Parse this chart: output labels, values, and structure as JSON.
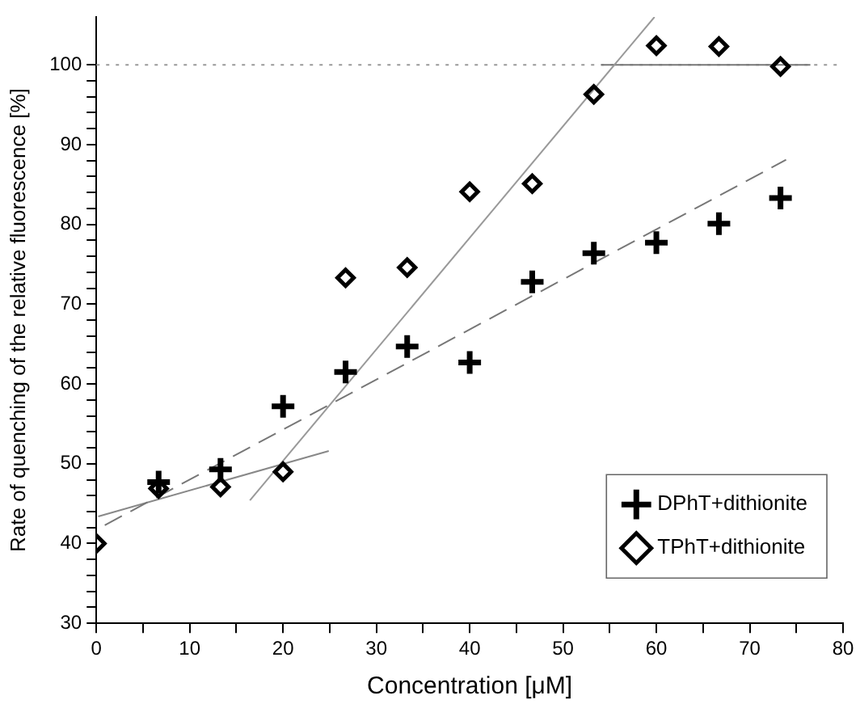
{
  "chart_data": {
    "type": "scatter",
    "xlabel": "Concentration [μM]",
    "ylabel": "Rate of quenching of the relative fluorescence [%]",
    "xlim": [
      0,
      80
    ],
    "xticks": [
      0,
      {
        "value": 5,
        "label": null
      },
      10,
      {
        "value": 15,
        "label": null
      },
      20,
      {
        "value": 25,
        "label": null
      },
      30,
      {
        "value": 35,
        "label": null
      },
      40,
      {
        "value": 45,
        "label": null
      },
      50,
      {
        "value": 55,
        "label": null
      },
      60,
      {
        "value": 65,
        "label": null
      },
      70,
      {
        "value": 75,
        "label": null
      },
      80
    ],
    "ylim": [
      30,
      106
    ],
    "yticks": [
      30,
      {
        "value": 32,
        "label": null
      },
      {
        "value": 34,
        "label": null
      },
      {
        "value": 36,
        "label": null
      },
      {
        "value": 38,
        "label": null
      },
      40,
      {
        "value": 42,
        "label": null
      },
      {
        "value": 44,
        "label": null
      },
      {
        "value": 46,
        "label": null
      },
      {
        "value": 48,
        "label": null
      },
      50,
      {
        "value": 52,
        "label": null
      },
      {
        "value": 54,
        "label": null
      },
      {
        "value": 56,
        "label": null
      },
      {
        "value": 58,
        "label": null
      },
      60,
      {
        "value": 62,
        "label": null
      },
      {
        "value": 64,
        "label": null
      },
      {
        "value": 66,
        "label": null
      },
      {
        "value": 68,
        "label": null
      },
      70,
      {
        "value": 72,
        "label": null
      },
      {
        "value": 74,
        "label": null
      },
      {
        "value": 76,
        "label": null
      },
      {
        "value": 78,
        "label": null
      },
      80,
      {
        "value": 82,
        "label": null
      },
      {
        "value": 84,
        "label": null
      },
      {
        "value": 86,
        "label": null
      },
      {
        "value": 88,
        "label": null
      },
      90,
      {
        "value": 92,
        "label": null
      },
      {
        "value": 94,
        "label": null
      },
      {
        "value": 96,
        "label": null
      },
      {
        "value": 98,
        "label": null
      },
      100
    ],
    "legend": "bottom right",
    "ref_lines": [
      {
        "axis": "y",
        "value": 100,
        "color": "#999999",
        "line_style": "dotted"
      }
    ],
    "series": [
      {
        "name": "DPhT+dithionite",
        "color": "#000000",
        "marker": "cross",
        "x": [
          6.67,
          13.3,
          20,
          26.7,
          33.3,
          40,
          46.7,
          53.3,
          60,
          66.7,
          73.3
        ],
        "values": [
          47.7,
          49.3,
          57.2,
          61.5,
          64.7,
          62.7,
          72.8,
          76.4,
          77.7,
          80.1,
          83.3
        ]
      },
      {
        "name": "TPhT+dithionite",
        "color": "#000000",
        "marker": "diamond",
        "x": [
          0,
          6.67,
          13.3,
          20,
          26.7,
          33.3,
          40,
          46.7,
          53.3,
          60,
          66.7,
          73.3
        ],
        "values": [
          40,
          46.9,
          47.1,
          49,
          73.3,
          74.6,
          84.1,
          85.1,
          96.3,
          102.4,
          102.3,
          99.8
        ]
      },
      {
        "type": "line",
        "color": "#777777",
        "marker": "none",
        "line_style": "dashed",
        "x": [
          0.9,
          73.9
        ],
        "values": [
          42.3,
          88.1
        ]
      },
      {
        "type": "line",
        "color": "#888888",
        "marker": "none",
        "line_style": "solid",
        "x": [
          0.2,
          24.9
        ],
        "values": [
          43.4,
          51.6
        ]
      },
      {
        "type": "line",
        "color": "#999999",
        "marker": "none",
        "line_style": "solid",
        "x": [
          16.45,
          59.8
        ],
        "values": [
          45.4,
          106
        ]
      },
      {
        "type": "line",
        "color": "#777777",
        "marker": "none",
        "line_style": "solid",
        "x": [
          54.1,
          76.5
        ],
        "values": [
          100,
          100
        ]
      }
    ]
  }
}
